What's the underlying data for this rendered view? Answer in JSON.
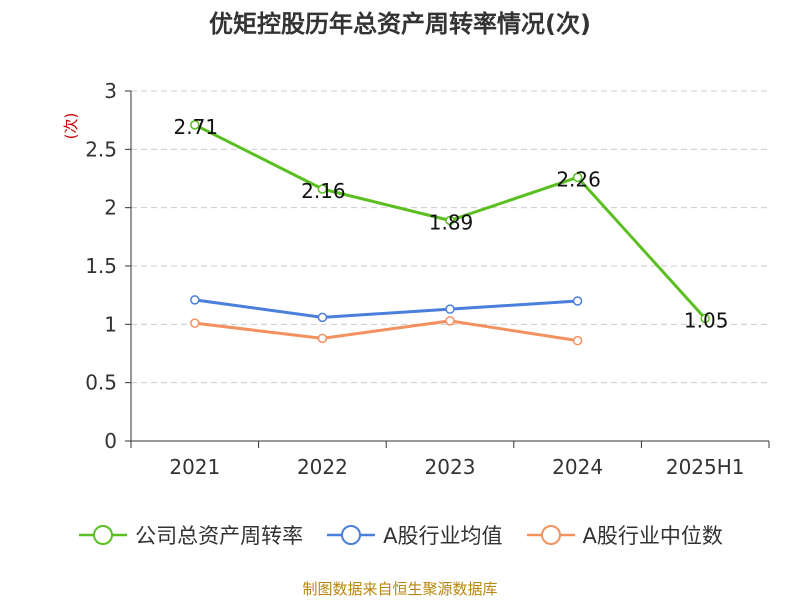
{
  "title": "优矩控股历年总资产周转率情况(次)",
  "footer": "制图数据来自恒生聚源数据库",
  "chart_data": {
    "type": "line",
    "title": "优矩控股历年总资产周转率情况(次)",
    "ylabel": "(次)",
    "xlabel": "",
    "ylim": [
      0,
      3
    ],
    "yticks": [
      0,
      0.5,
      1,
      1.5,
      2,
      2.5,
      3
    ],
    "ytick_labels": [
      "0",
      "0.5",
      "1",
      "1.5",
      "2",
      "2.5",
      "3"
    ],
    "grid": true,
    "legend_position": "bottom",
    "categories": [
      "2021",
      "2022",
      "2023",
      "2024",
      "2025H1"
    ],
    "series": [
      {
        "name": "公司总资产周转率",
        "color": "#5bbf21",
        "values": [
          2.71,
          2.16,
          1.89,
          2.26,
          1.05
        ],
        "labels": [
          "2.71",
          "2.16",
          "1.89",
          "2.26",
          "1.05"
        ]
      },
      {
        "name": "A股行业均值",
        "color": "#4a7fdc",
        "values": [
          1.21,
          1.06,
          1.13,
          1.2,
          null
        ]
      },
      {
        "name": "A股行业中位数",
        "color": "#f4915f",
        "values": [
          1.01,
          0.88,
          1.03,
          0.86,
          null
        ]
      }
    ]
  }
}
